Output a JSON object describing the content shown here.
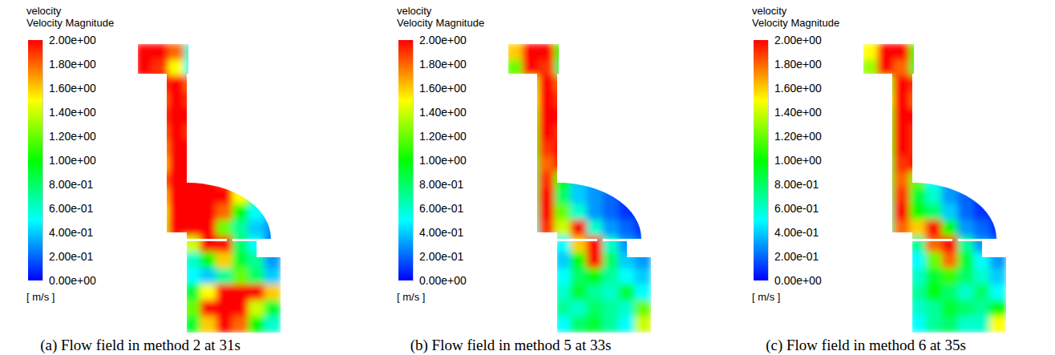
{
  "chart_data": [
    {
      "type": "heatmap",
      "title": "velocity",
      "subtitle": "Velocity Magnitude",
      "colorbar_label": "[ m/s ]",
      "caption": "(a) Flow field in method 2 at 31s",
      "colorbar_range": [
        0,
        2
      ],
      "colorbar_ticks": [
        {
          "value": 2,
          "label": "2.00e+00"
        },
        {
          "value": 1.8,
          "label": "1.80e+00"
        },
        {
          "value": 1.6,
          "label": "1.60e+00"
        },
        {
          "value": 1.4,
          "label": "1.40e+00"
        },
        {
          "value": 1.2,
          "label": "1.20e+00"
        },
        {
          "value": 1,
          "label": "1.00e+00"
        },
        {
          "value": 0.8,
          "label": "8.00e-01"
        },
        {
          "value": 0.6,
          "label": "6.00e-01"
        },
        {
          "value": 0.4,
          "label": "4.00e-01"
        },
        {
          "value": 0.2,
          "label": "2.00e-01"
        },
        {
          "value": 0,
          "label": "0.00e+00"
        }
      ],
      "cells": [
        [
          2.0,
          2.0,
          1.8,
          0.6,
          null,
          null,
          null,
          null,
          null
        ],
        [
          2.0,
          1.9,
          1.5,
          0.5,
          null,
          null,
          null,
          null,
          null
        ],
        [
          null,
          1.9,
          2.0,
          1.8,
          null,
          null,
          null,
          null,
          null
        ],
        [
          null,
          1.8,
          2.0,
          1.9,
          null,
          null,
          null,
          null,
          null
        ],
        [
          null,
          1.9,
          2.0,
          2.0,
          null,
          null,
          null,
          null,
          null
        ],
        [
          null,
          1.8,
          2.0,
          1.9,
          null,
          null,
          null,
          null,
          null
        ],
        [
          null,
          1.7,
          2.0,
          2.0,
          null,
          null,
          null,
          null,
          null
        ],
        [
          null,
          1.6,
          2.0,
          2.0,
          null,
          null,
          null,
          null,
          null
        ],
        [
          null,
          1.8,
          2.0,
          2.0,
          2.0,
          1.9,
          null,
          null,
          null
        ],
        [
          null,
          1.6,
          2.0,
          2.0,
          2.0,
          2.0,
          1.5,
          0.9,
          null
        ],
        [
          null,
          1.5,
          2.0,
          2.0,
          2.0,
          1.8,
          1.0,
          0.5,
          0.4
        ],
        [
          null,
          1.4,
          2.0,
          2.0,
          2.0,
          1.2,
          0.7,
          0.4,
          0.3
        ],
        [
          null,
          null,
          null,
          1.4,
          2.0,
          2.0,
          0.8,
          0.5,
          0.2
        ],
        [
          null,
          null,
          null,
          0.6,
          1.0,
          1.6,
          0.9,
          0.7,
          0.3
        ],
        [
          null,
          null,
          null,
          0.5,
          0.4,
          0.7,
          1.2,
          0.8,
          0.4
        ],
        [
          null,
          null,
          null,
          0.9,
          1.5,
          2.0,
          2.0,
          2.0,
          1.6
        ],
        [
          null,
          null,
          null,
          1.2,
          2.0,
          2.0,
          2.0,
          1.4,
          0.9
        ],
        [
          null,
          null,
          null,
          0.9,
          1.6,
          2.0,
          1.8,
          1.0,
          0.6
        ]
      ]
    },
    {
      "type": "heatmap",
      "title": "velocity",
      "subtitle": "Velocity Magnitude",
      "colorbar_label": "[ m/s ]",
      "caption": "(b) Flow field in method 5 at 33s",
      "colorbar_range": [
        0,
        2
      ],
      "colorbar_ticks": [
        {
          "value": 2,
          "label": "2.00e+00"
        },
        {
          "value": 1.8,
          "label": "1.80e+00"
        },
        {
          "value": 1.6,
          "label": "1.60e+00"
        },
        {
          "value": 1.4,
          "label": "1.40e+00"
        },
        {
          "value": 1.2,
          "label": "1.20e+00"
        },
        {
          "value": 1,
          "label": "1.00e+00"
        },
        {
          "value": 0.8,
          "label": "8.00e-01"
        },
        {
          "value": 0.6,
          "label": "6.00e-01"
        },
        {
          "value": 0.4,
          "label": "4.00e-01"
        },
        {
          "value": 0.2,
          "label": "2.00e-01"
        },
        {
          "value": 0,
          "label": "0.00e+00"
        }
      ],
      "cells": [
        [
          1.6,
          2.0,
          2.0,
          1.0,
          null,
          null,
          null,
          null,
          null
        ],
        [
          1.2,
          2.0,
          1.9,
          0.8,
          null,
          null,
          null,
          null,
          null
        ],
        [
          null,
          1.4,
          2.0,
          1.8,
          null,
          null,
          null,
          null,
          null
        ],
        [
          null,
          1.5,
          2.0,
          1.9,
          null,
          null,
          null,
          null,
          null
        ],
        [
          null,
          1.3,
          2.0,
          2.0,
          null,
          null,
          null,
          null,
          null
        ],
        [
          null,
          1.2,
          2.0,
          1.9,
          null,
          null,
          null,
          null,
          null
        ],
        [
          null,
          1.0,
          1.9,
          2.0,
          null,
          null,
          null,
          null,
          null
        ],
        [
          null,
          0.9,
          1.8,
          2.0,
          null,
          null,
          null,
          null,
          null
        ],
        [
          null,
          0.8,
          1.9,
          1.0,
          0.4,
          0.3,
          null,
          null,
          null
        ],
        [
          null,
          0.8,
          2.0,
          0.8,
          0.4,
          0.3,
          0.2,
          0.1,
          null
        ],
        [
          null,
          0.7,
          2.0,
          1.2,
          0.6,
          0.3,
          0.2,
          0.1,
          0.1
        ],
        [
          null,
          0.6,
          1.9,
          1.4,
          2.0,
          0.6,
          0.3,
          0.2,
          0.1
        ],
        [
          null,
          null,
          null,
          0.5,
          1.6,
          2.0,
          0.6,
          0.3,
          0.2
        ],
        [
          null,
          null,
          null,
          0.4,
          1.0,
          2.0,
          0.8,
          0.4,
          0.3
        ],
        [
          null,
          null,
          null,
          0.5,
          0.8,
          1.0,
          0.7,
          0.5,
          0.4
        ],
        [
          null,
          null,
          null,
          0.6,
          0.9,
          0.7,
          0.6,
          0.9,
          0.5
        ],
        [
          null,
          null,
          null,
          0.7,
          0.6,
          0.8,
          0.7,
          0.6,
          1.2
        ],
        [
          null,
          null,
          null,
          0.5,
          0.8,
          0.9,
          0.7,
          0.5,
          1.4
        ]
      ]
    },
    {
      "type": "heatmap",
      "title": "velocity",
      "subtitle": "Velocity Magnitude",
      "colorbar_label": "[ m/s ]",
      "caption": "(c) Flow field in method 6 at 35s",
      "colorbar_range": [
        0,
        2
      ],
      "colorbar_ticks": [
        {
          "value": 2,
          "label": "2.00e+00"
        },
        {
          "value": 1.8,
          "label": "1.80e+00"
        },
        {
          "value": 1.6,
          "label": "1.60e+00"
        },
        {
          "value": 1.4,
          "label": "1.40e+00"
        },
        {
          "value": 1.2,
          "label": "1.20e+00"
        },
        {
          "value": 1,
          "label": "1.00e+00"
        },
        {
          "value": 0.8,
          "label": "8.00e-01"
        },
        {
          "value": 0.6,
          "label": "6.00e-01"
        },
        {
          "value": 0.4,
          "label": "4.00e-01"
        },
        {
          "value": 0.2,
          "label": "2.00e-01"
        },
        {
          "value": 0,
          "label": "0.00e+00"
        }
      ],
      "cells": [
        [
          1.5,
          2.0,
          2.0,
          1.1,
          null,
          null,
          null,
          null,
          null
        ],
        [
          1.3,
          2.0,
          1.8,
          0.9,
          null,
          null,
          null,
          null,
          null
        ],
        [
          null,
          1.3,
          2.0,
          1.9,
          null,
          null,
          null,
          null,
          null
        ],
        [
          null,
          1.4,
          2.0,
          1.8,
          null,
          null,
          null,
          null,
          null
        ],
        [
          null,
          1.2,
          2.0,
          2.0,
          null,
          null,
          null,
          null,
          null
        ],
        [
          null,
          1.1,
          2.0,
          1.9,
          null,
          null,
          null,
          null,
          null
        ],
        [
          null,
          1.0,
          2.0,
          1.9,
          null,
          null,
          null,
          null,
          null
        ],
        [
          null,
          0.9,
          1.9,
          2.0,
          null,
          null,
          null,
          null,
          null
        ],
        [
          null,
          0.9,
          1.8,
          1.2,
          0.5,
          0.3,
          null,
          null,
          null
        ],
        [
          null,
          0.8,
          1.9,
          0.9,
          0.6,
          0.3,
          0.2,
          0.1,
          null
        ],
        [
          null,
          0.7,
          2.0,
          1.0,
          0.8,
          0.4,
          0.2,
          0.1,
          0.1
        ],
        [
          null,
          0.7,
          1.8,
          1.6,
          2.0,
          1.0,
          0.3,
          0.2,
          0.1
        ],
        [
          null,
          null,
          null,
          0.7,
          1.8,
          2.0,
          0.7,
          0.3,
          0.2
        ],
        [
          null,
          null,
          null,
          0.5,
          1.2,
          1.8,
          0.9,
          0.5,
          0.3
        ],
        [
          null,
          null,
          null,
          0.6,
          0.9,
          1.1,
          0.8,
          0.6,
          0.4
        ],
        [
          null,
          null,
          null,
          0.7,
          1.0,
          0.8,
          0.6,
          0.8,
          0.5
        ],
        [
          null,
          null,
          null,
          0.6,
          0.7,
          0.9,
          0.8,
          0.7,
          1.0
        ],
        [
          null,
          null,
          null,
          0.5,
          0.7,
          0.8,
          0.6,
          0.6,
          1.5
        ]
      ]
    }
  ]
}
